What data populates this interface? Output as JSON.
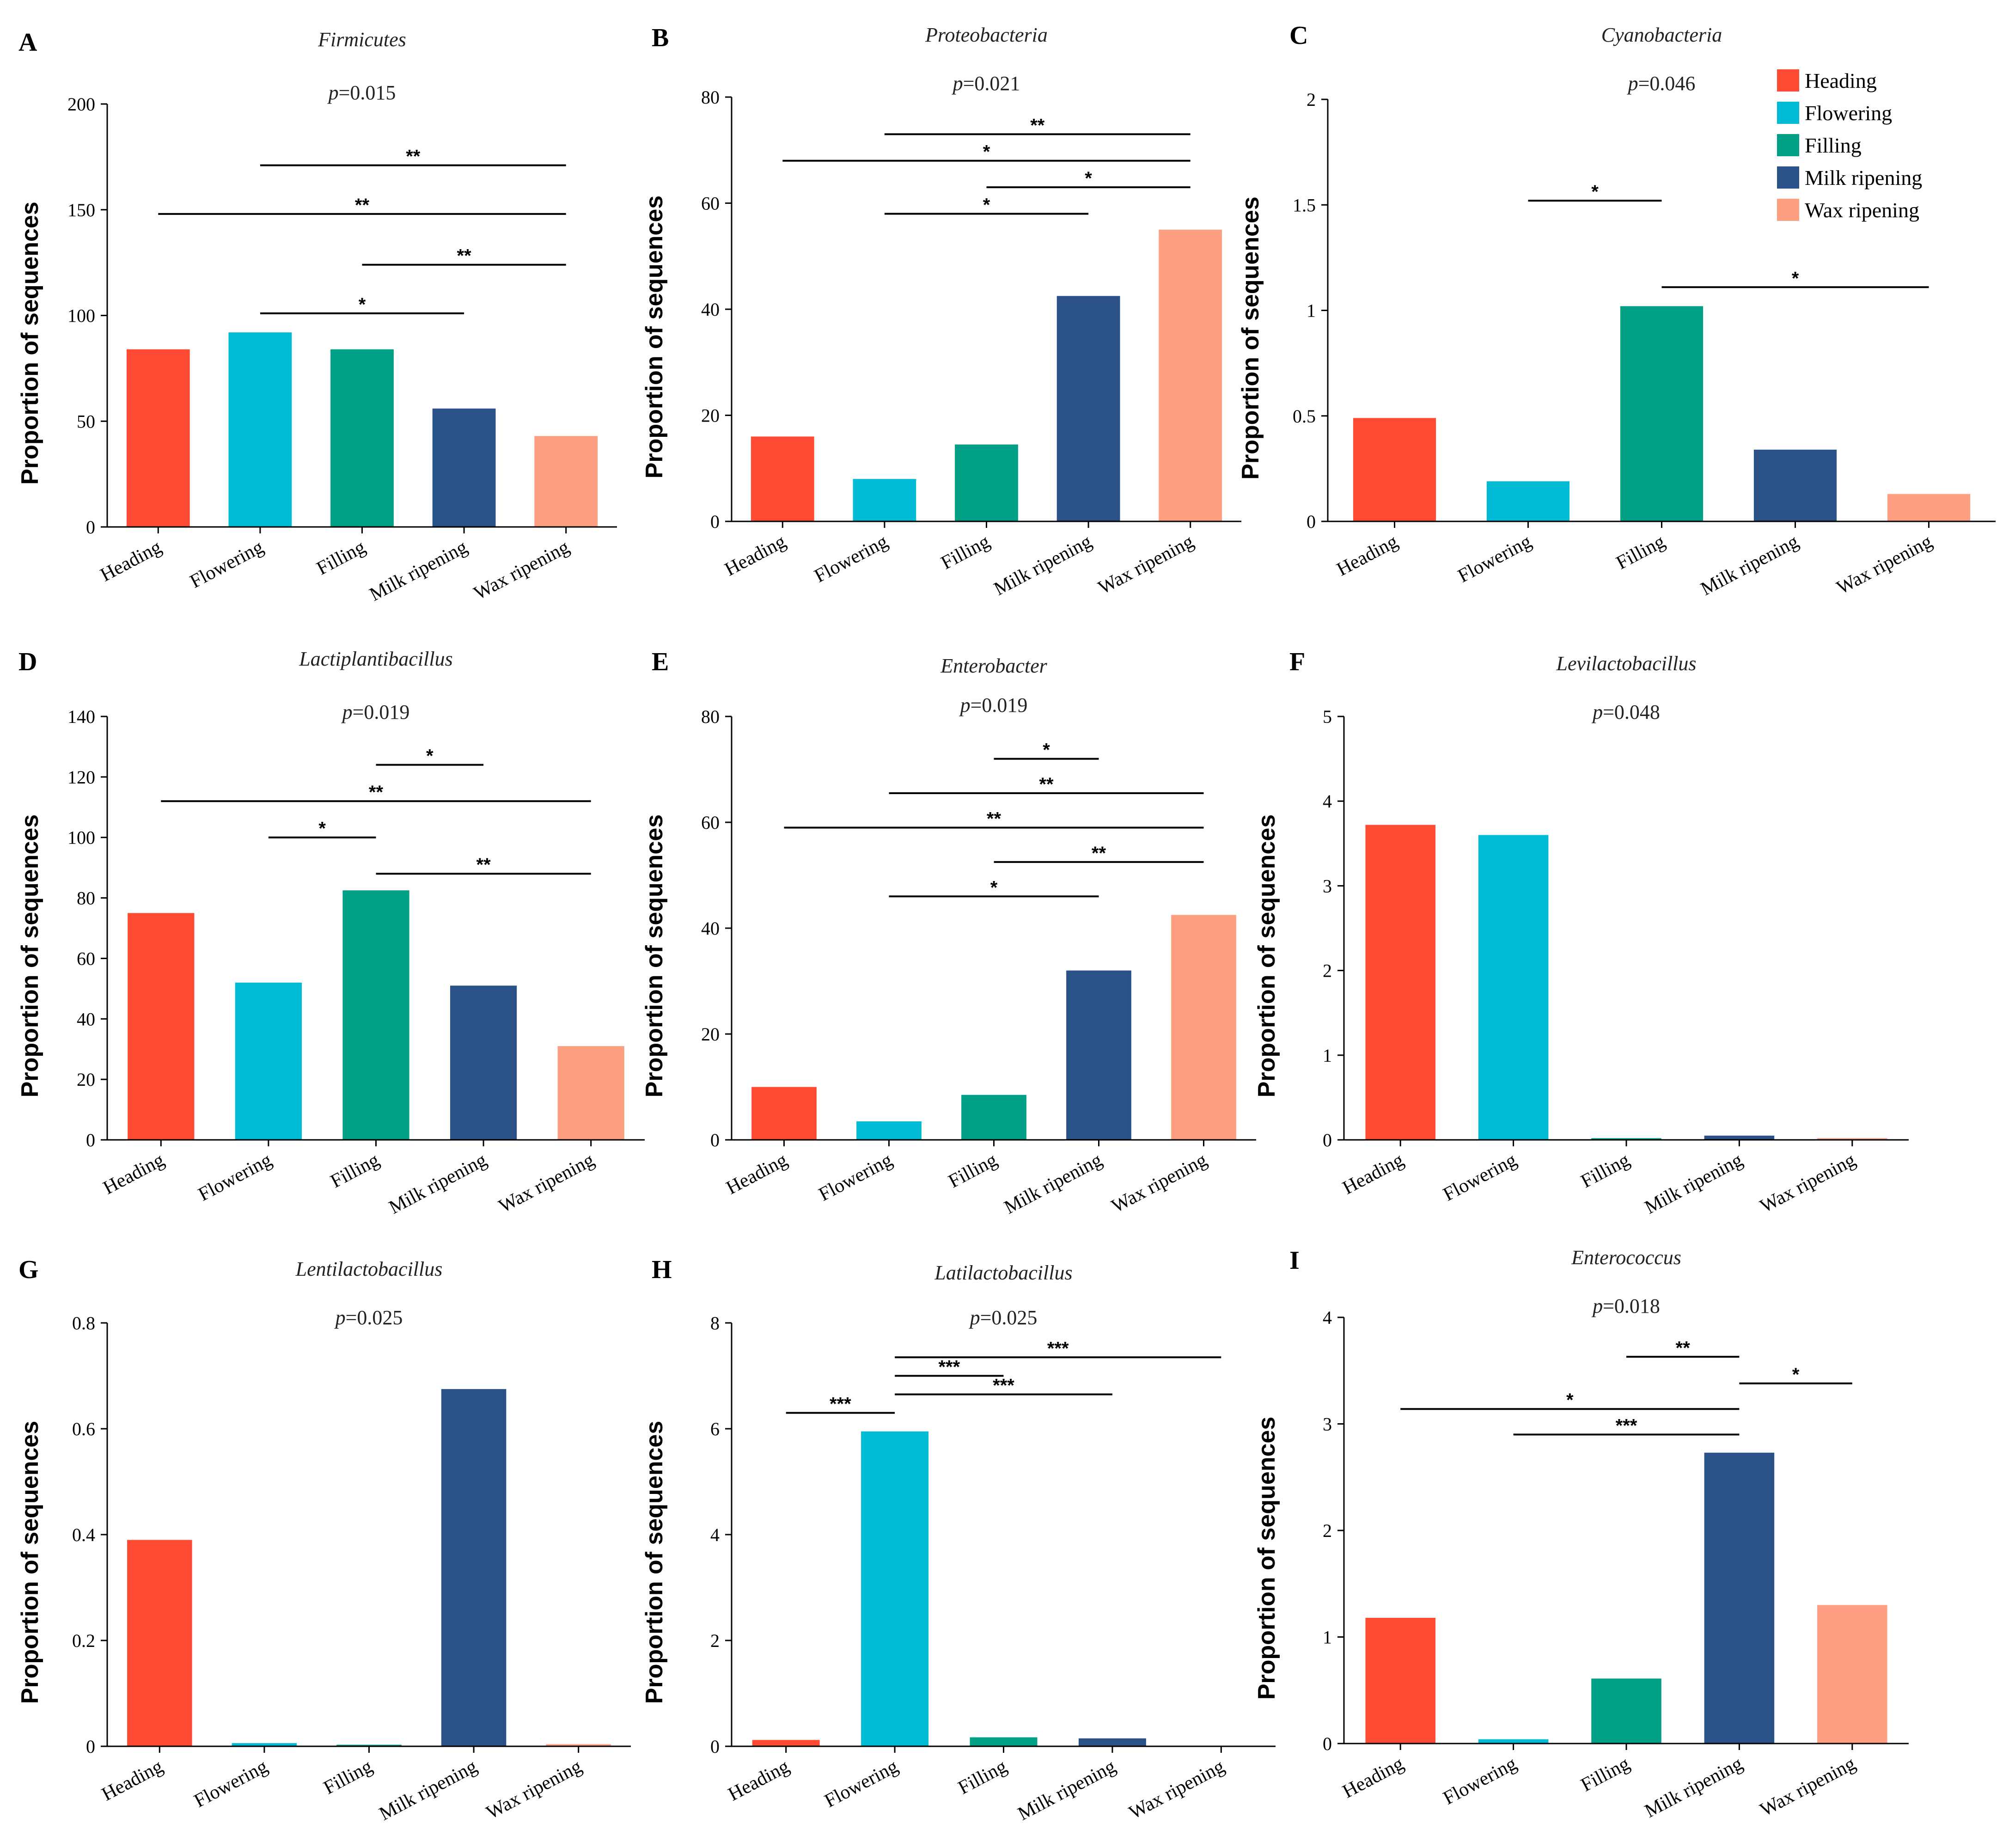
{
  "colors": {
    "Heading": "#FF4B33",
    "Flowering": "#00BBD6",
    "Filling": "#00A086",
    "Milk ripening": "#2A5288",
    "Wax ripening": "#FF9F82"
  },
  "legend": {
    "items": [
      "Heading",
      "Flowering",
      "Filling",
      "Milk ripening",
      "Wax ripening"
    ]
  },
  "chart_data": [
    {
      "panel": "A",
      "type": "bar",
      "title": "Firmicutes",
      "pvalue": {
        "prefix": "p",
        "text": "=0.015"
      },
      "ylabel": "Proportion of sequences",
      "categories": [
        "Heading",
        "Flowering",
        "Filling",
        "Milk ripening",
        "Wax ripening"
      ],
      "values": [
        84,
        92,
        84,
        56,
        43
      ],
      "ylim": [
        0,
        200
      ],
      "yticks": [
        {
          "v": 0,
          "label": "0"
        },
        {
          "v": 50,
          "label": "50"
        },
        {
          "v": 100,
          "label": "100"
        },
        {
          "v": 150,
          "label": "150"
        },
        {
          "v": 200,
          "label": "200"
        }
      ],
      "comparisons": [
        {
          "from": 1,
          "to": 4,
          "y": 171,
          "label": "**"
        },
        {
          "from": 0,
          "to": 4,
          "y": 148,
          "label": "**"
        },
        {
          "from": 2,
          "to": 4,
          "y": 124,
          "label": "**"
        },
        {
          "from": 1,
          "to": 3,
          "y": 101,
          "label": "*"
        }
      ]
    },
    {
      "panel": "B",
      "type": "bar",
      "title": "Proteobacteria",
      "pvalue": {
        "prefix": "p",
        "text": "=0.021"
      },
      "ylabel": "Proportion of sequences",
      "categories": [
        "Heading",
        "Flowering",
        "Filling",
        "Milk ripening",
        "Wax ripening"
      ],
      "values": [
        16,
        8,
        14.5,
        42.5,
        55
      ],
      "ylim": [
        0,
        80
      ],
      "yticks": [
        {
          "v": 0,
          "label": "0"
        },
        {
          "v": 20,
          "label": "20"
        },
        {
          "v": 40,
          "label": "40"
        },
        {
          "v": 60,
          "label": "60"
        },
        {
          "v": 80,
          "label": "80"
        }
      ],
      "comparisons": [
        {
          "from": 1,
          "to": 4,
          "y": 73,
          "label": "**"
        },
        {
          "from": 0,
          "to": 4,
          "y": 68,
          "label": "*"
        },
        {
          "from": 2,
          "to": 4,
          "y": 63,
          "label": "*"
        },
        {
          "from": 1,
          "to": 3,
          "y": 58,
          "label": "*"
        }
      ]
    },
    {
      "panel": "C",
      "type": "bar",
      "title": "Cyanobacteria",
      "pvalue": {
        "prefix": "p",
        "text": "=0.046"
      },
      "ylabel": "Proportion of sequences",
      "categories": [
        "Heading",
        "Flowering",
        "Filling",
        "Milk ripening",
        "Wax ripening"
      ],
      "values": [
        0.49,
        0.19,
        1.02,
        0.34,
        0.13
      ],
      "ylim": [
        0,
        2
      ],
      "yticks": [
        {
          "v": 0,
          "label": "0"
        },
        {
          "v": 0.5,
          "label": "0.5"
        },
        {
          "v": 1,
          "label": "1"
        },
        {
          "v": 1.5,
          "label": "1.5"
        },
        {
          "v": 2,
          "label": "2"
        }
      ],
      "comparisons": [
        {
          "from": 1,
          "to": 2,
          "y": 1.52,
          "label": "*"
        },
        {
          "from": 2,
          "to": 4,
          "y": 1.11,
          "label": "*"
        }
      ]
    },
    {
      "panel": "D",
      "type": "bar",
      "title": "Lactiplantibacillus",
      "pvalue": {
        "prefix": "p",
        "text": "=0.019"
      },
      "ylabel": "Proportion of sequences",
      "categories": [
        "Heading",
        "Flowering",
        "Filling",
        "Milk ripening",
        "Wax ripening"
      ],
      "values": [
        75,
        52,
        82.5,
        51,
        31
      ],
      "ylim": [
        0,
        140
      ],
      "yticks": [
        {
          "v": 0,
          "label": "0"
        },
        {
          "v": 20,
          "label": "20"
        },
        {
          "v": 40,
          "label": "40"
        },
        {
          "v": 60,
          "label": "60"
        },
        {
          "v": 80,
          "label": "80"
        },
        {
          "v": 100,
          "label": "100"
        },
        {
          "v": 120,
          "label": "120"
        },
        {
          "v": 140,
          "label": "140"
        }
      ],
      "comparisons": [
        {
          "from": 2,
          "to": 3,
          "y": 124,
          "label": "*"
        },
        {
          "from": 0,
          "to": 4,
          "y": 112,
          "label": "**"
        },
        {
          "from": 1,
          "to": 2,
          "y": 100,
          "label": "*"
        },
        {
          "from": 2,
          "to": 4,
          "y": 88,
          "label": "**"
        }
      ]
    },
    {
      "panel": "E",
      "type": "bar",
      "title": "Enterobacter",
      "pvalue": {
        "prefix": "p",
        "text": "=0.019"
      },
      "ylabel": "Proportion of sequences",
      "categories": [
        "Heading",
        "Flowering",
        "Filling",
        "Milk ripening",
        "Wax ripening"
      ],
      "values": [
        10,
        3.5,
        8.5,
        32,
        42.5
      ],
      "ylim": [
        0,
        80
      ],
      "yticks": [
        {
          "v": 0,
          "label": "0"
        },
        {
          "v": 20,
          "label": "20"
        },
        {
          "v": 40,
          "label": "40"
        },
        {
          "v": 60,
          "label": "60"
        },
        {
          "v": 80,
          "label": "80"
        }
      ],
      "comparisons": [
        {
          "from": 2,
          "to": 3,
          "y": 72,
          "label": "*"
        },
        {
          "from": 1,
          "to": 4,
          "y": 65.5,
          "label": "**"
        },
        {
          "from": 0,
          "to": 4,
          "y": 59,
          "label": "**"
        },
        {
          "from": 2,
          "to": 4,
          "y": 52.5,
          "label": "**"
        },
        {
          "from": 1,
          "to": 3,
          "y": 46,
          "label": "*"
        }
      ]
    },
    {
      "panel": "F",
      "type": "bar",
      "title": "Levilactobacillus",
      "pvalue": {
        "prefix": "p",
        "text": "=0.048"
      },
      "ylabel": "Proportion of sequences",
      "categories": [
        "Heading",
        "Flowering",
        "Filling",
        "Milk ripening",
        "Wax ripening"
      ],
      "values": [
        3.72,
        3.6,
        0.02,
        0.05,
        0.02
      ],
      "ylim": [
        0,
        5
      ],
      "yticks": [
        {
          "v": 0,
          "label": "0"
        },
        {
          "v": 1,
          "label": "1"
        },
        {
          "v": 2,
          "label": "2"
        },
        {
          "v": 3,
          "label": "3"
        },
        {
          "v": 4,
          "label": "4"
        },
        {
          "v": 5,
          "label": "5"
        }
      ],
      "comparisons": []
    },
    {
      "panel": "G",
      "type": "bar",
      "title": "Lentilactobacillus",
      "pvalue": {
        "prefix": "p",
        "text": "=0.025"
      },
      "ylabel": "Proportion of sequences",
      "categories": [
        "Heading",
        "Flowering",
        "Filling",
        "Milk ripening",
        "Wax ripening"
      ],
      "values": [
        0.39,
        0.006,
        0.003,
        0.675,
        0.004
      ],
      "ylim": [
        0,
        0.8
      ],
      "yticks": [
        {
          "v": 0,
          "label": "0"
        },
        {
          "v": 0.2,
          "label": "0.2"
        },
        {
          "v": 0.4,
          "label": "0.4"
        },
        {
          "v": 0.6,
          "label": "0.6"
        },
        {
          "v": 0.8,
          "label": "0.8"
        }
      ],
      "comparisons": []
    },
    {
      "panel": "H",
      "type": "bar",
      "title": "Latilactobacillus",
      "pvalue": {
        "prefix": "p",
        "text": "=0.025"
      },
      "ylabel": "Proportion of sequences",
      "categories": [
        "Heading",
        "Flowering",
        "Filling",
        "Milk ripening",
        "Wax ripening"
      ],
      "values": [
        0.12,
        5.95,
        0.17,
        0.15,
        0.0
      ],
      "ylim": [
        0,
        8
      ],
      "yticks": [
        {
          "v": 0,
          "label": "0"
        },
        {
          "v": 2,
          "label": "2"
        },
        {
          "v": 4,
          "label": "4"
        },
        {
          "v": 6,
          "label": "6"
        },
        {
          "v": 8,
          "label": "8"
        }
      ],
      "comparisons": [
        {
          "from": 1,
          "to": 4,
          "y": 7.35,
          "label": "***"
        },
        {
          "from": 1,
          "to": 2,
          "y": 7.0,
          "label": "***"
        },
        {
          "from": 1,
          "to": 3,
          "y": 6.65,
          "label": "***"
        },
        {
          "from": 0,
          "to": 1,
          "y": 6.3,
          "label": "***"
        }
      ]
    },
    {
      "panel": "I",
      "type": "bar",
      "title": "Enterococcus",
      "pvalue": {
        "prefix": "p",
        "text": "=0.018"
      },
      "ylabel": "Proportion of sequences",
      "categories": [
        "Heading",
        "Flowering",
        "Filling",
        "Milk ripening",
        "Wax ripening"
      ],
      "values": [
        1.18,
        0.04,
        0.61,
        2.73,
        1.3
      ],
      "ylim": [
        0,
        4
      ],
      "yticks": [
        {
          "v": 0,
          "label": "0"
        },
        {
          "v": 1,
          "label": "1"
        },
        {
          "v": 2,
          "label": "2"
        },
        {
          "v": 3,
          "label": "3"
        },
        {
          "v": 4,
          "label": "4"
        }
      ],
      "comparisons": [
        {
          "from": 2,
          "to": 3,
          "y": 3.63,
          "label": "**"
        },
        {
          "from": 3,
          "to": 4,
          "y": 3.38,
          "label": "*"
        },
        {
          "from": 0,
          "to": 3,
          "y": 3.14,
          "label": "*"
        },
        {
          "from": 1,
          "to": 3,
          "y": 2.9,
          "label": "***"
        }
      ]
    }
  ]
}
